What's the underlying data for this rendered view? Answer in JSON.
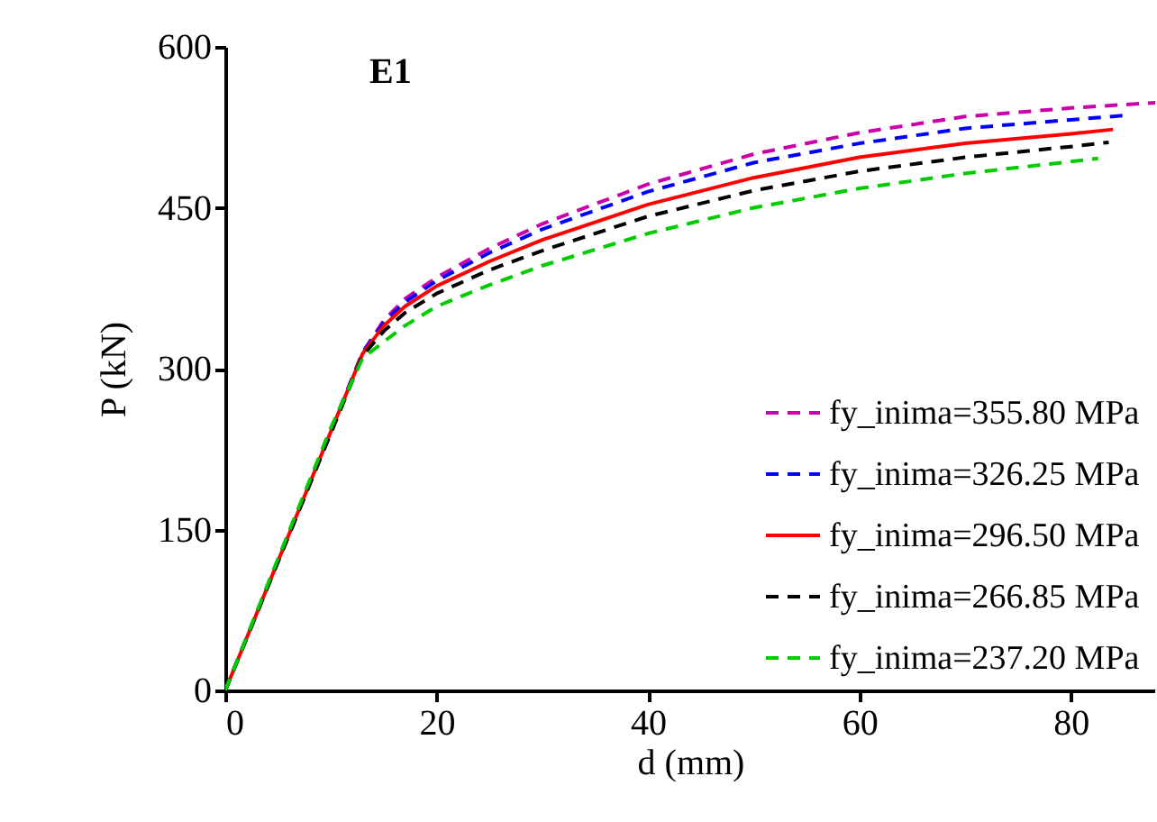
{
  "chart_data": {
    "type": "line",
    "title": "E1",
    "xlabel": "d (mm)",
    "ylabel": "P (kN)",
    "xlim": [
      0,
      88
    ],
    "xticks": [
      0,
      20,
      40,
      60,
      80
    ],
    "ylim": [
      0,
      600
    ],
    "yticks": [
      0,
      150,
      300,
      450,
      600
    ],
    "grid": false,
    "legend": "bottom right",
    "marker": "none",
    "series": [
      {
        "name": "fy_inima=355.80 MPa",
        "color": "#cc00aa",
        "line_style": "dashed",
        "x": [
          0,
          13,
          15,
          17,
          20,
          25,
          30,
          40,
          50,
          60,
          70,
          80,
          88
        ],
        "values": [
          0,
          315,
          345,
          365,
          385,
          412,
          435,
          472,
          500,
          520,
          535,
          543,
          548
        ]
      },
      {
        "name": "fy_inima=326.25 MPa",
        "color": "#0000ff",
        "line_style": "dashed",
        "x": [
          0,
          13,
          15,
          17,
          20,
          25,
          30,
          40,
          50,
          60,
          70,
          80,
          85
        ],
        "values": [
          0,
          315,
          343,
          362,
          382,
          408,
          430,
          465,
          492,
          510,
          524,
          532,
          536
        ]
      },
      {
        "name": "fy_inima=296.50 MPa",
        "color": "#ff0000",
        "line_style": "solid",
        "x": [
          0,
          13,
          15,
          17,
          20,
          25,
          30,
          40,
          50,
          60,
          70,
          80,
          84
        ],
        "values": [
          0,
          314,
          340,
          358,
          377,
          400,
          420,
          453,
          478,
          497,
          510,
          519,
          523
        ]
      },
      {
        "name": "fy_inima=266.85 MPa",
        "color": "#000000",
        "line_style": "dashed",
        "x": [
          0,
          13,
          15,
          17,
          20,
          25,
          30,
          40,
          50,
          60,
          70,
          80,
          83.6
        ],
        "values": [
          0,
          312,
          335,
          352,
          370,
          392,
          410,
          442,
          466,
          484,
          497,
          507,
          511
        ]
      },
      {
        "name": "fy_inima=237.20 MPa",
        "color": "#00cc00",
        "line_style": "dashed",
        "x": [
          0,
          5,
          10,
          13,
          15,
          17,
          20,
          25,
          30,
          40,
          50,
          60,
          70,
          80,
          82.6
        ],
        "values": [
          0,
          123,
          245,
          310,
          325,
          340,
          358,
          378,
          396,
          426,
          450,
          468,
          482,
          493,
          496
        ]
      }
    ]
  }
}
